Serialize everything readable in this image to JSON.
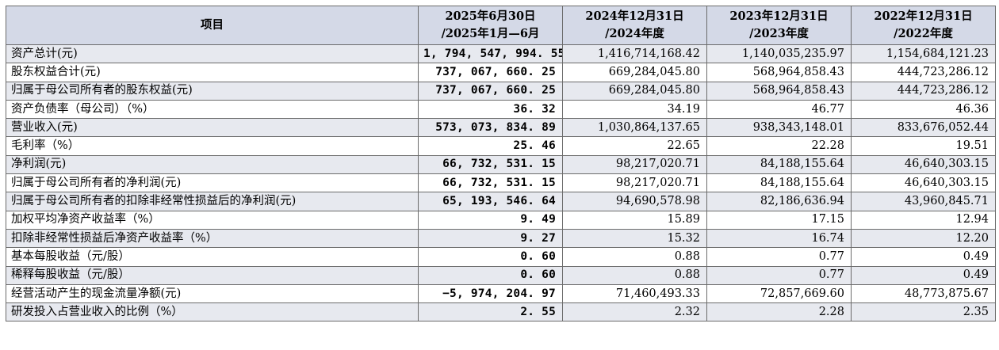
{
  "table": {
    "headers": [
      {
        "line1": "项目",
        "line2": ""
      },
      {
        "line1": "2025年6月30日",
        "line2": "/2025年1月—6月"
      },
      {
        "line1": "2024年12月31日",
        "line2": "/2024年度"
      },
      {
        "line1": "2023年12月31日",
        "line2": "/2023年度"
      },
      {
        "line1": "2022年12月31日",
        "line2": "/2022年度"
      }
    ],
    "rows": [
      {
        "label": "资产总计(元)",
        "v2025": "1, 794, 547, 994. 55",
        "v2024": "1,416,714,168.42",
        "v2023": "1,140,035,235.97",
        "v2022": "1,154,684,121.23"
      },
      {
        "label": "股东权益合计(元)",
        "v2025": "737, 067, 660. 25",
        "v2024": "669,284,045.80",
        "v2023": "568,964,858.43",
        "v2022": "444,723,286.12"
      },
      {
        "label": "归属于母公司所有者的股东权益(元)",
        "v2025": "737, 067, 660. 25",
        "v2024": "669,284,045.80",
        "v2023": "568,964,858.43",
        "v2022": "444,723,286.12"
      },
      {
        "label": "资产负债率（母公司）（%）",
        "v2025": "36. 32",
        "v2024": "34.19",
        "v2023": "46.77",
        "v2022": "46.36"
      },
      {
        "label": "营业收入(元)",
        "v2025": "573, 073, 834. 89",
        "v2024": "1,030,864,137.65",
        "v2023": "938,343,148.01",
        "v2022": "833,676,052.44"
      },
      {
        "label": "毛利率（%）",
        "v2025": "25. 46",
        "v2024": "22.65",
        "v2023": "22.28",
        "v2022": "19.51"
      },
      {
        "label": "净利润(元)",
        "v2025": "66, 732, 531. 15",
        "v2024": "98,217,020.71",
        "v2023": "84,188,155.64",
        "v2022": "46,640,303.15"
      },
      {
        "label": "归属于母公司所有者的净利润(元)",
        "v2025": "66, 732, 531. 15",
        "v2024": "98,217,020.71",
        "v2023": "84,188,155.64",
        "v2022": "46,640,303.15"
      },
      {
        "label": "归属于母公司所有者的扣除非经常性损益后的净利润(元)",
        "v2025": "65, 193, 546. 64",
        "v2024": "94,690,578.98",
        "v2023": "82,186,636.94",
        "v2022": "43,960,845.71"
      },
      {
        "label": "加权平均净资产收益率（%）",
        "v2025": "9. 49",
        "v2024": "15.89",
        "v2023": "17.15",
        "v2022": "12.94"
      },
      {
        "label": "扣除非经常性损益后净资产收益率（%）",
        "v2025": "9. 27",
        "v2024": "15.32",
        "v2023": "16.74",
        "v2022": "12.20"
      },
      {
        "label": "基本每股收益（元/股）",
        "v2025": "0. 60",
        "v2024": "0.88",
        "v2023": "0.77",
        "v2022": "0.49"
      },
      {
        "label": "稀释每股收益（元/股）",
        "v2025": "0. 60",
        "v2024": "0.88",
        "v2023": "0.77",
        "v2022": "0.49"
      },
      {
        "label": "经营活动产生的现金流量净额(元)",
        "v2025": "−5, 974, 204. 97",
        "v2024": "71,460,493.33",
        "v2023": "72,857,669.60",
        "v2022": "48,773,875.67"
      },
      {
        "label": "研发投入占营业收入的比例（%）",
        "v2025": "2. 55",
        "v2024": "2.32",
        "v2023": "2.28",
        "v2022": "2.35"
      }
    ]
  },
  "colors": {
    "header_bg": "#d4d9e7",
    "row_shade": "#e7e9ef",
    "border": "#6b6b6b"
  }
}
